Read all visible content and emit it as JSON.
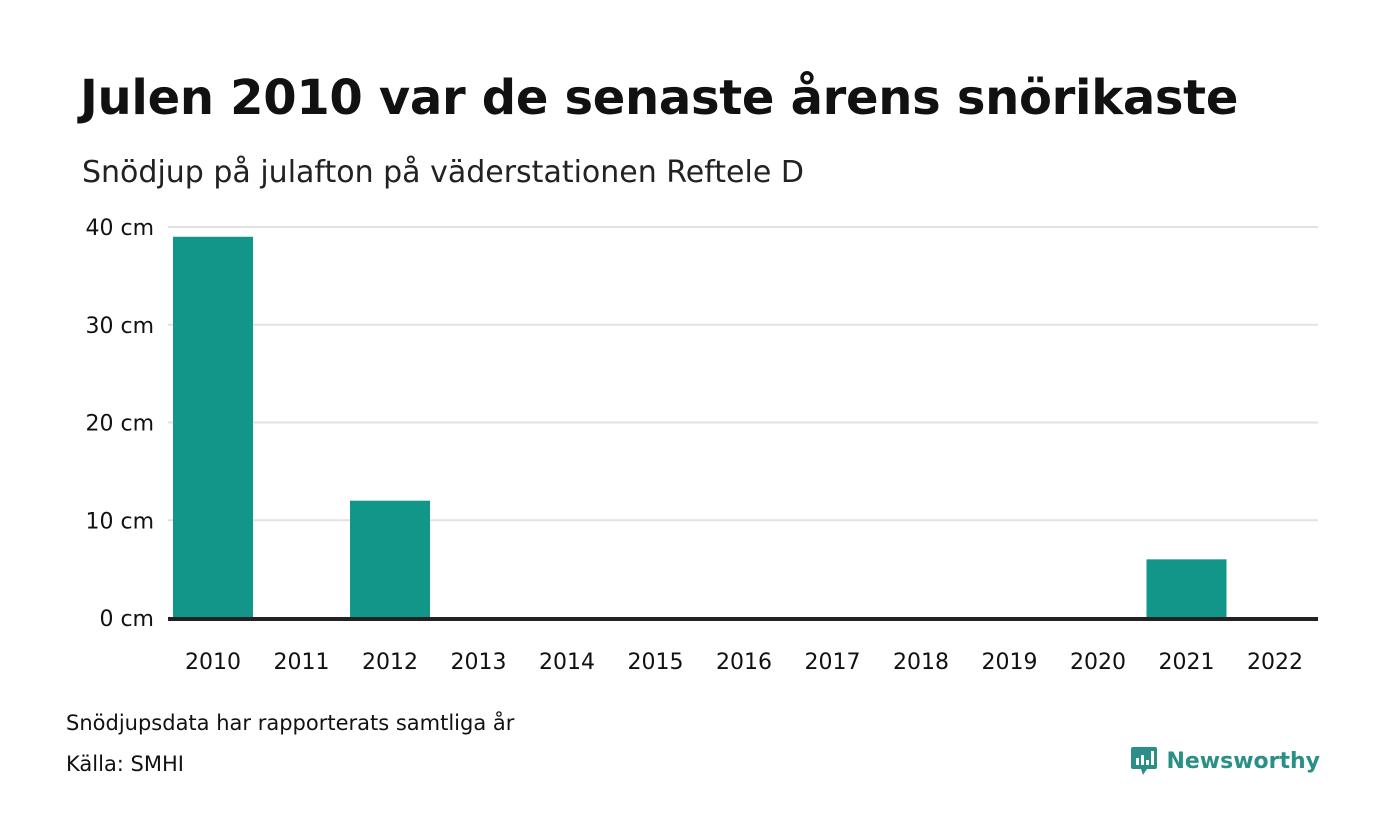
{
  "header": {
    "title": "Julen 2010 var de senaste årens snörikaste",
    "subtitle": "Snödjup på julafton på väderstationen Reftele D"
  },
  "chart_data": {
    "type": "bar",
    "categories": [
      "2010",
      "2011",
      "2012",
      "2013",
      "2014",
      "2015",
      "2016",
      "2017",
      "2018",
      "2019",
      "2020",
      "2021",
      "2022"
    ],
    "values": [
      39,
      0,
      12,
      0,
      0,
      0,
      0,
      0,
      0,
      0,
      0,
      6,
      0
    ],
    "y_ticks": [
      "0 cm",
      "10 cm",
      "20 cm",
      "30 cm",
      "40 cm"
    ],
    "y_tick_values": [
      0,
      10,
      20,
      30,
      40
    ],
    "ylim": [
      0,
      40
    ],
    "grid": true,
    "bar_color": "#13968a",
    "axis_color": "#222222",
    "grid_color": "#e2e2e2"
  },
  "footer": {
    "note": "Snödjupsdata har rapporterats samtliga år",
    "source": "Källa: SMHI",
    "brand_name": "Newsworthy",
    "brand_icon": "newsworthy-logo-icon",
    "brand_color": "#2a8f86"
  }
}
